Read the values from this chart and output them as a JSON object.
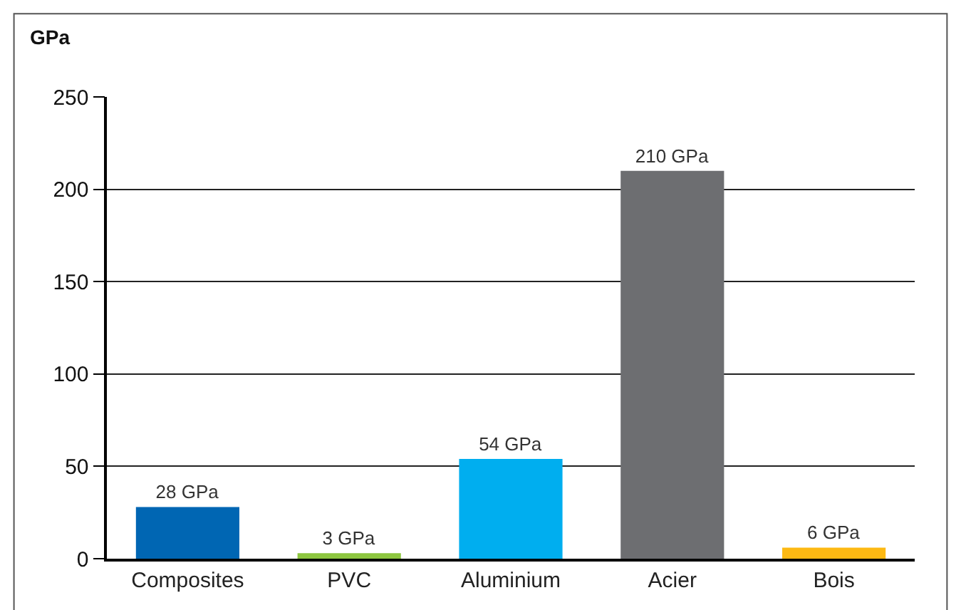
{
  "chart_data": {
    "type": "bar",
    "ylabel": "GPa",
    "categories": [
      "Composites",
      "PVC",
      "Aluminium",
      "Acier",
      "Bois"
    ],
    "values": [
      28,
      3,
      54,
      210,
      6
    ],
    "value_labels": [
      "28 GPa",
      "3 GPa",
      "54 GPa",
      "210 GPa",
      "6 GPa"
    ],
    "colors": [
      "#0066b3",
      "#8dc63f",
      "#00aeef",
      "#6d6e71",
      "#fdb913"
    ],
    "ylim": [
      0,
      250
    ],
    "yticks": [
      0,
      50,
      100,
      150,
      200,
      250
    ],
    "grid": "y"
  }
}
